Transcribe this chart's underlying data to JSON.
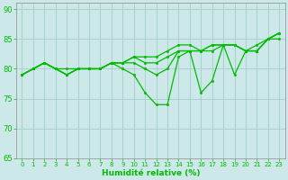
{
  "xlabel": "Humidité relative (%)",
  "xlim": [
    -0.5,
    23.5
  ],
  "ylim": [
    65,
    91
  ],
  "yticks": [
    65,
    70,
    75,
    80,
    85,
    90
  ],
  "xticks": [
    0,
    1,
    2,
    3,
    4,
    5,
    6,
    7,
    8,
    9,
    10,
    11,
    12,
    13,
    14,
    15,
    16,
    17,
    18,
    19,
    20,
    21,
    22,
    23
  ],
  "bg_color": "#cce8e8",
  "grid_color": "#aad0d0",
  "line_color": "#00bb00",
  "lines": [
    [
      79,
      80,
      81,
      80,
      80,
      80,
      80,
      80,
      81,
      80,
      79,
      76,
      74,
      74,
      82,
      83,
      76,
      78,
      84,
      79,
      83,
      84,
      85,
      85
    ],
    [
      79,
      80,
      81,
      80,
      79,
      80,
      80,
      80,
      81,
      81,
      81,
      80,
      79,
      80,
      83,
      83,
      83,
      83,
      84,
      84,
      83,
      83,
      85,
      86
    ],
    [
      79,
      80,
      81,
      80,
      79,
      80,
      80,
      80,
      81,
      81,
      82,
      81,
      81,
      82,
      83,
      83,
      83,
      84,
      84,
      84,
      83,
      83,
      85,
      86
    ],
    [
      79,
      80,
      81,
      80,
      79,
      80,
      80,
      80,
      81,
      81,
      82,
      82,
      82,
      83,
      84,
      84,
      83,
      84,
      84,
      84,
      83,
      83,
      85,
      86
    ]
  ]
}
